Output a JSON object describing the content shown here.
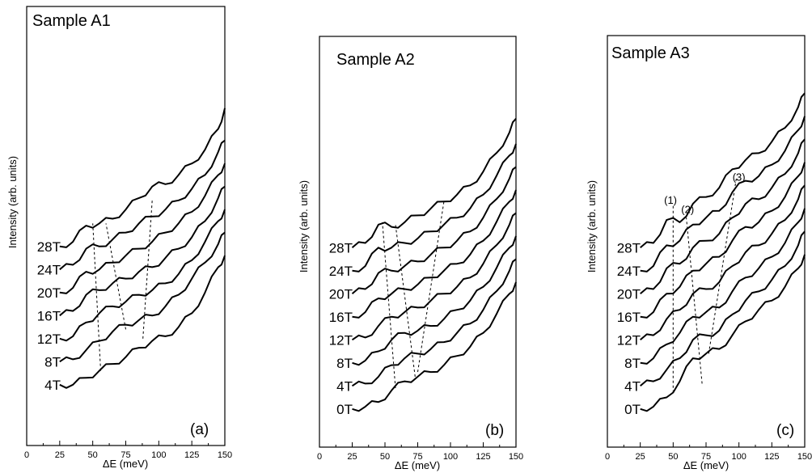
{
  "chart_data": [
    {
      "type": "line",
      "title": "Sample A1",
      "panel_label": "(a)",
      "xlabel": "ΔE (meV)",
      "ylabel": "Intensity (arb. units)",
      "xlim": [
        0,
        150
      ],
      "xticks": [
        "0",
        "25",
        "50",
        "75",
        "100",
        "125",
        "150"
      ],
      "series": [
        {
          "name": "4T",
          "x": [
            25,
            35,
            45,
            55,
            65,
            75,
            85,
            95,
            105,
            115,
            125,
            135,
            145,
            150
          ],
          "values": [
            0.5,
            0.5,
            0.8,
            1.1,
            1.4,
            1.7,
            2.1,
            2.4,
            2.6,
            3.0,
            3.6,
            4.5,
            5.6,
            6.1
          ]
        },
        {
          "name": "8T",
          "x": [
            25,
            35,
            45,
            55,
            65,
            75,
            85,
            95,
            105,
            115,
            125,
            135,
            145,
            150
          ],
          "values": [
            1.5,
            1.6,
            2.0,
            2.4,
            2.8,
            3.1,
            3.3,
            3.5,
            3.9,
            4.4,
            5.1,
            5.8,
            6.6,
            7.1
          ]
        },
        {
          "name": "12T",
          "x": [
            25,
            35,
            45,
            55,
            65,
            75,
            85,
            95,
            105,
            115,
            125,
            135,
            145,
            150
          ],
          "values": [
            2.5,
            2.6,
            3.2,
            3.6,
            3.9,
            4.1,
            4.4,
            4.6,
            4.9,
            5.3,
            5.9,
            6.7,
            7.6,
            8.1
          ]
        },
        {
          "name": "16T",
          "x": [
            25,
            35,
            45,
            55,
            65,
            75,
            85,
            95,
            105,
            115,
            125,
            135,
            145,
            150
          ],
          "values": [
            3.5,
            3.7,
            4.4,
            4.6,
            4.9,
            5.1,
            5.4,
            5.6,
            6.0,
            6.4,
            6.9,
            7.6,
            8.6,
            9.1
          ]
        },
        {
          "name": "20T",
          "x": [
            25,
            35,
            45,
            55,
            65,
            75,
            85,
            95,
            105,
            115,
            125,
            135,
            145,
            150
          ],
          "values": [
            4.5,
            4.7,
            5.4,
            5.5,
            5.8,
            6.1,
            6.4,
            6.7,
            7.1,
            7.5,
            8.0,
            8.7,
            9.6,
            10.1
          ]
        },
        {
          "name": "24T",
          "x": [
            25,
            35,
            45,
            55,
            65,
            75,
            85,
            95,
            105,
            115,
            125,
            135,
            145,
            150
          ],
          "values": [
            5.5,
            5.7,
            6.4,
            6.5,
            6.8,
            7.1,
            7.5,
            7.8,
            8.1,
            8.5,
            9.0,
            9.6,
            10.6,
            11.1
          ]
        },
        {
          "name": "28T",
          "x": [
            25,
            35,
            45,
            55,
            65,
            75,
            85,
            95,
            105,
            115,
            125,
            135,
            145,
            150
          ],
          "values": [
            6.5,
            6.7,
            7.4,
            7.5,
            7.7,
            8.1,
            8.6,
            9.1,
            9.2,
            9.6,
            10.1,
            10.7,
            11.6,
            12.5
          ]
        }
      ],
      "guide_lines": [
        {
          "points": [
            [
              56,
              1.1
            ],
            [
              50,
              7.5
            ]
          ]
        },
        {
          "points": [
            [
              75,
              2.9
            ],
            [
              60,
              7.5
            ]
          ]
        },
        {
          "points": [
            [
              88,
              2.5
            ],
            [
              95,
              8.5
            ]
          ]
        }
      ]
    },
    {
      "type": "line",
      "title": "Sample A2",
      "panel_label": "(b)",
      "xlabel": "ΔE (meV)",
      "ylabel": "Intensity (arb. units)",
      "xlim": [
        0,
        150
      ],
      "xticks": [
        "0",
        "25",
        "50",
        "75",
        "100",
        "125",
        "150"
      ],
      "series": [
        {
          "name": "0T",
          "x": [
            25,
            35,
            45,
            55,
            65,
            75,
            85,
            95,
            105,
            115,
            125,
            135,
            145,
            150
          ],
          "values": [
            0.5,
            0.6,
            0.8,
            1.3,
            1.7,
            1.9,
            2.1,
            2.4,
            2.8,
            3.2,
            3.8,
            4.6,
            5.5,
            6.0
          ]
        },
        {
          "name": "4T",
          "x": [
            25,
            35,
            45,
            55,
            65,
            75,
            85,
            95,
            105,
            115,
            125,
            135,
            145,
            150
          ],
          "values": [
            1.5,
            1.6,
            1.9,
            2.4,
            2.7,
            2.9,
            3.1,
            3.4,
            3.8,
            4.2,
            4.8,
            5.6,
            6.5,
            7.0
          ]
        },
        {
          "name": "8T",
          "x": [
            25,
            35,
            45,
            55,
            65,
            75,
            85,
            95,
            105,
            115,
            125,
            135,
            145,
            150
          ],
          "values": [
            2.5,
            2.6,
            3.0,
            3.5,
            3.8,
            3.9,
            4.1,
            4.4,
            4.8,
            5.2,
            5.8,
            6.6,
            7.5,
            8.0
          ]
        },
        {
          "name": "12T",
          "x": [
            25,
            35,
            45,
            55,
            65,
            75,
            85,
            95,
            105,
            115,
            125,
            135,
            145,
            150
          ],
          "values": [
            3.5,
            3.6,
            4.1,
            4.5,
            4.7,
            4.9,
            5.2,
            5.5,
            5.8,
            6.2,
            6.8,
            7.6,
            8.5,
            9.0
          ]
        },
        {
          "name": "16T",
          "x": [
            25,
            35,
            45,
            55,
            65,
            75,
            85,
            95,
            105,
            115,
            125,
            135,
            145,
            150
          ],
          "values": [
            4.5,
            4.7,
            5.3,
            5.5,
            5.7,
            5.9,
            6.2,
            6.5,
            6.8,
            7.2,
            7.8,
            8.6,
            9.5,
            10.0
          ]
        },
        {
          "name": "20T",
          "x": [
            25,
            35,
            45,
            55,
            65,
            75,
            85,
            95,
            105,
            115,
            125,
            135,
            145,
            150
          ],
          "values": [
            5.5,
            5.7,
            6.4,
            6.5,
            6.7,
            6.9,
            7.2,
            7.5,
            7.8,
            8.2,
            8.8,
            9.6,
            10.5,
            11.0
          ]
        },
        {
          "name": "24T",
          "x": [
            25,
            35,
            45,
            55,
            65,
            75,
            85,
            95,
            105,
            115,
            125,
            135,
            145,
            150
          ],
          "values": [
            6.5,
            6.7,
            7.5,
            7.5,
            7.7,
            7.9,
            8.2,
            8.5,
            8.8,
            9.2,
            9.8,
            10.6,
            11.5,
            12.0
          ]
        },
        {
          "name": "28T",
          "x": [
            25,
            35,
            45,
            55,
            65,
            75,
            85,
            95,
            105,
            115,
            125,
            135,
            145,
            150
          ],
          "values": [
            7.5,
            7.7,
            8.5,
            8.4,
            8.6,
            8.9,
            9.2,
            9.5,
            9.8,
            10.2,
            10.8,
            11.6,
            12.5,
            13.1
          ]
        }
      ],
      "guide_lines": [
        {
          "points": [
            [
              58,
              1.4
            ],
            [
              48,
              8.6
            ]
          ]
        },
        {
          "points": [
            [
              73,
              1.9
            ],
            [
              58,
              8.5
            ]
          ]
        },
        {
          "points": [
            [
              75,
              2.1
            ],
            [
              95,
              9.5
            ]
          ]
        }
      ]
    },
    {
      "type": "line",
      "title": "Sample A3",
      "panel_label": "(c)",
      "xlabel": "ΔE (meV)",
      "ylabel": "Intensity (arb. units)",
      "xlim": [
        0,
        150
      ],
      "xticks": [
        "0",
        "25",
        "50",
        "75",
        "100",
        "125",
        "150"
      ],
      "annotations": [
        {
          "text": "(1)",
          "x": 48,
          "y": 9.4
        },
        {
          "text": "(2)",
          "x": 61,
          "y": 9.0
        },
        {
          "text": "(3)",
          "x": 100,
          "y": 10.4
        }
      ],
      "series": [
        {
          "name": "0T",
          "x": [
            25,
            35,
            45,
            55,
            65,
            75,
            85,
            95,
            105,
            115,
            125,
            135,
            145,
            150
          ],
          "values": [
            0.5,
            0.6,
            1.0,
            1.7,
            2.7,
            2.9,
            3.1,
            3.7,
            4.3,
            4.8,
            5.2,
            5.8,
            6.6,
            7.2
          ]
        },
        {
          "name": "4T",
          "x": [
            25,
            35,
            45,
            55,
            65,
            75,
            85,
            95,
            105,
            115,
            125,
            135,
            145,
            150
          ],
          "values": [
            1.5,
            1.7,
            2.2,
            2.7,
            3.5,
            3.7,
            3.9,
            4.6,
            5.2,
            5.6,
            6.1,
            6.7,
            7.6,
            8.2
          ]
        },
        {
          "name": "8T",
          "x": [
            25,
            35,
            45,
            55,
            65,
            75,
            85,
            95,
            105,
            115,
            125,
            135,
            145,
            150
          ],
          "values": [
            2.5,
            2.7,
            3.3,
            3.8,
            4.5,
            4.7,
            4.9,
            5.6,
            6.2,
            6.6,
            7.1,
            7.7,
            8.6,
            9.2
          ]
        },
        {
          "name": "12T",
          "x": [
            25,
            35,
            45,
            55,
            65,
            75,
            85,
            95,
            105,
            115,
            125,
            135,
            145,
            150
          ],
          "values": [
            3.5,
            3.7,
            4.4,
            4.8,
            5.5,
            5.7,
            6.0,
            6.7,
            7.3,
            7.6,
            8.1,
            8.7,
            9.6,
            10.2
          ]
        },
        {
          "name": "16T",
          "x": [
            25,
            35,
            45,
            55,
            65,
            75,
            85,
            95,
            105,
            115,
            125,
            135,
            145,
            150
          ],
          "values": [
            4.5,
            4.7,
            5.5,
            5.8,
            6.5,
            6.8,
            7.1,
            7.8,
            8.4,
            8.6,
            9.1,
            9.7,
            10.6,
            11.2
          ]
        },
        {
          "name": "20T",
          "x": [
            25,
            35,
            45,
            55,
            65,
            75,
            85,
            95,
            105,
            115,
            125,
            135,
            145,
            150
          ],
          "values": [
            5.5,
            5.7,
            6.6,
            6.8,
            7.5,
            7.8,
            8.1,
            8.8,
            9.4,
            9.6,
            10.1,
            10.7,
            11.6,
            12.2
          ]
        },
        {
          "name": "24T",
          "x": [
            25,
            35,
            45,
            55,
            65,
            75,
            85,
            95,
            105,
            115,
            125,
            135,
            145,
            150
          ],
          "values": [
            6.5,
            6.7,
            7.6,
            7.8,
            8.5,
            8.8,
            9.1,
            9.9,
            10.4,
            10.6,
            11.1,
            11.7,
            12.6,
            13.2
          ]
        },
        {
          "name": "28T",
          "x": [
            25,
            35,
            45,
            55,
            65,
            75,
            85,
            95,
            105,
            115,
            125,
            135,
            145,
            150
          ],
          "values": [
            7.5,
            7.7,
            8.7,
            8.6,
            9.4,
            9.7,
            10.1,
            10.9,
            11.3,
            11.6,
            12.1,
            12.7,
            13.6,
            14.2
          ]
        }
      ],
      "guide_lines": [
        {
          "points": [
            [
              50,
              1.2
            ],
            [
              50,
              9.3
            ]
          ]
        },
        {
          "points": [
            [
              72,
              1.6
            ],
            [
              60,
              8.8
            ]
          ]
        },
        {
          "points": [
            [
              77,
              2.9
            ],
            [
              98,
              10.5
            ]
          ]
        }
      ]
    }
  ]
}
